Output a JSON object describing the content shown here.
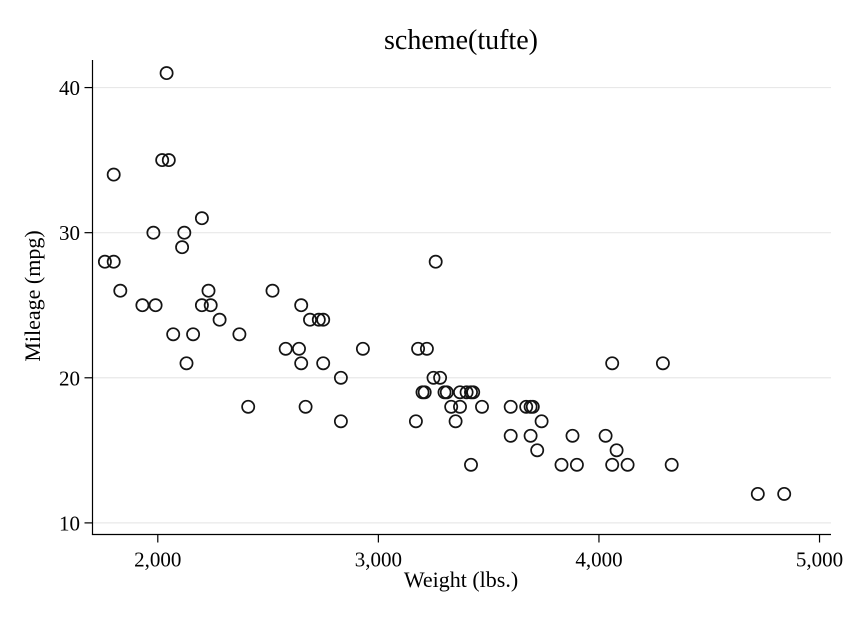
{
  "chart_data": {
    "type": "scatter",
    "title": "scheme(tufte)",
    "xlabel": "Weight (lbs.)",
    "ylabel": "Mileage (mpg)",
    "xlim": [
      1704,
      5052
    ],
    "ylim": [
      9.2,
      41.9
    ],
    "x_ticks": [
      {
        "value": 2000,
        "label": "2,000"
      },
      {
        "value": 3000,
        "label": "3,000"
      },
      {
        "value": 4000,
        "label": "4,000"
      },
      {
        "value": 5000,
        "label": "5,000"
      }
    ],
    "y_ticks": [
      {
        "value": 10,
        "label": "10"
      },
      {
        "value": 20,
        "label": "20"
      },
      {
        "value": 30,
        "label": "30"
      },
      {
        "value": 40,
        "label": "40"
      }
    ],
    "grid": {
      "horizontal": true,
      "vertical": false
    },
    "legend_position": "none",
    "marker": {
      "shape": "hollow-circle",
      "radius": 6.1,
      "stroke_width": 1.7
    },
    "colors": {
      "background": "#ffffff",
      "axis_line": "#000000",
      "gridline": "#e8e8e8",
      "marker_stroke": "#141414",
      "text": "#000000"
    },
    "series": [
      {
        "name": "Mileage (mpg) vs Weight (lbs.)",
        "points": [
          [
            2930,
            22
          ],
          [
            3350,
            17
          ],
          [
            2640,
            22
          ],
          [
            3250,
            20
          ],
          [
            4080,
            15
          ],
          [
            3670,
            18
          ],
          [
            2230,
            26
          ],
          [
            3280,
            20
          ],
          [
            3880,
            16
          ],
          [
            3400,
            19
          ],
          [
            4330,
            14
          ],
          [
            3900,
            14
          ],
          [
            4290,
            21
          ],
          [
            2110,
            29
          ],
          [
            3690,
            16
          ],
          [
            3180,
            22
          ],
          [
            3220,
            22
          ],
          [
            2750,
            24
          ],
          [
            3430,
            19
          ],
          [
            2120,
            30
          ],
          [
            3600,
            18
          ],
          [
            3600,
            16
          ],
          [
            3740,
            17
          ],
          [
            1800,
            28
          ],
          [
            2650,
            21
          ],
          [
            4840,
            12
          ],
          [
            4720,
            12
          ],
          [
            3830,
            14
          ],
          [
            2580,
            22
          ],
          [
            4060,
            14
          ],
          [
            3720,
            15
          ],
          [
            3370,
            18
          ],
          [
            4130,
            14
          ],
          [
            2830,
            20
          ],
          [
            4060,
            21
          ],
          [
            3310,
            19
          ],
          [
            3300,
            19
          ],
          [
            3690,
            18
          ],
          [
            3370,
            19
          ],
          [
            2730,
            24
          ],
          [
            4030,
            16
          ],
          [
            3260,
            28
          ],
          [
            1800,
            34
          ],
          [
            2200,
            25
          ],
          [
            2520,
            26
          ],
          [
            3330,
            18
          ],
          [
            3700,
            18
          ],
          [
            3470,
            18
          ],
          [
            3210,
            19
          ],
          [
            3200,
            19
          ],
          [
            3420,
            19
          ],
          [
            2690,
            24
          ],
          [
            2830,
            17
          ],
          [
            2070,
            23
          ],
          [
            2650,
            25
          ],
          [
            2370,
            23
          ],
          [
            2020,
            35
          ],
          [
            2280,
            24
          ],
          [
            2750,
            21
          ],
          [
            2130,
            21
          ],
          [
            2240,
            25
          ],
          [
            1760,
            28
          ],
          [
            1980,
            30
          ],
          [
            3420,
            14
          ],
          [
            1830,
            26
          ],
          [
            2050,
            35
          ],
          [
            2410,
            18
          ],
          [
            2200,
            31
          ],
          [
            2670,
            18
          ],
          [
            2160,
            23
          ],
          [
            2040,
            41
          ],
          [
            1930,
            25
          ],
          [
            1990,
            25
          ],
          [
            3170,
            17
          ]
        ]
      }
    ]
  }
}
